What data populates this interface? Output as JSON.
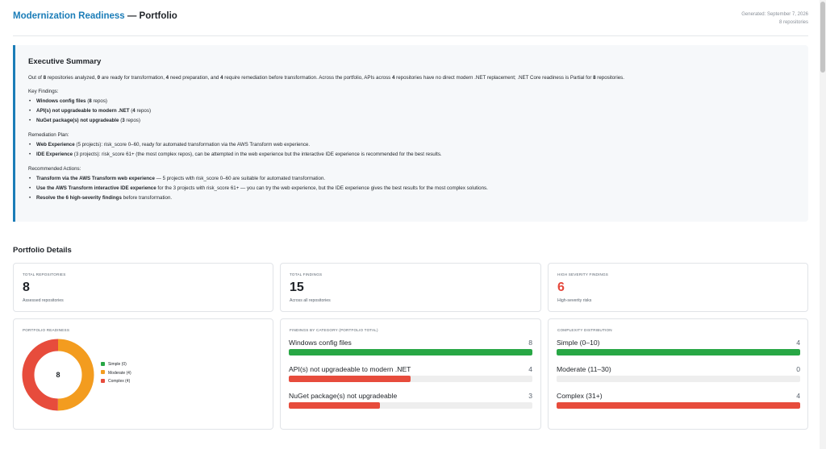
{
  "header": {
    "title_accent": "Modernization Readiness",
    "title_rest": " — Portfolio",
    "generated": "Generated: September 7, 2026",
    "repo_count": "8 repositories"
  },
  "summary": {
    "heading": "Executive Summary",
    "intro": [
      {
        "t": "Out of ",
        "b": false
      },
      {
        "t": "8",
        "b": true
      },
      {
        "t": " repositories analyzed, ",
        "b": false
      },
      {
        "t": "0",
        "b": true
      },
      {
        "t": " are ready for transformation, ",
        "b": false
      },
      {
        "t": "4",
        "b": true
      },
      {
        "t": " need preparation, and ",
        "b": false
      },
      {
        "t": "4",
        "b": true
      },
      {
        "t": " require remediation before transformation. Across the portfolio, APIs across ",
        "b": false
      },
      {
        "t": "4",
        "b": true
      },
      {
        "t": " repositories have no direct modern .NET replacement; .NET Core readiness is Partial for ",
        "b": false
      },
      {
        "t": "8",
        "b": true
      },
      {
        "t": " repositories.",
        "b": false
      }
    ],
    "sections": [
      {
        "title": "Key Findings:",
        "items": [
          [
            {
              "t": "Windows config files",
              "b": true
            },
            {
              "t": " (",
              "b": false
            },
            {
              "t": "8",
              "b": true
            },
            {
              "t": " repos)",
              "b": false
            }
          ],
          [
            {
              "t": "API(s) not upgradeable to modern .NET",
              "b": true
            },
            {
              "t": " (",
              "b": false
            },
            {
              "t": "4",
              "b": true
            },
            {
              "t": " repos)",
              "b": false
            }
          ],
          [
            {
              "t": "NuGet package(s) not upgradeable",
              "b": true
            },
            {
              "t": " (",
              "b": false
            },
            {
              "t": "3",
              "b": true
            },
            {
              "t": " repos)",
              "b": false
            }
          ]
        ]
      },
      {
        "title": "Remediation Plan:",
        "items": [
          [
            {
              "t": "Web Experience",
              "b": true
            },
            {
              "t": " (5 projects): risk_score 0–60, ready for automated transformation via the AWS Transform web experience.",
              "b": false
            }
          ],
          [
            {
              "t": "IDE Experience",
              "b": true
            },
            {
              "t": " (3 projects): risk_score 61+ (the most complex repos), can be attempted in the web experience but the interactive IDE experience is recommended for the best results.",
              "b": false
            }
          ]
        ]
      },
      {
        "title": "Recommended Actions:",
        "items": [
          [
            {
              "t": "Transform via the AWS Transform web experience",
              "b": true
            },
            {
              "t": " — 5 projects with risk_score 0–60 are suitable for automated transformation.",
              "b": false
            }
          ],
          [
            {
              "t": "Use the AWS Transform interactive IDE experience",
              "b": true
            },
            {
              "t": " for the 3 projects with risk_score 61+ — you can try the web experience, but the IDE experience gives the best results for the most complex solutions.",
              "b": false
            }
          ],
          [
            {
              "t": "Resolve the 6 high-severity findings",
              "b": true
            },
            {
              "t": " before transformation.",
              "b": false
            }
          ]
        ]
      }
    ]
  },
  "portfolio": {
    "title": "Portfolio Details",
    "stats": [
      {
        "label": "TOTAL REPOSITORIES",
        "value": "8",
        "sub": "Assessed repositories",
        "color": "#1f2328"
      },
      {
        "label": "TOTAL FINDINGS",
        "value": "15",
        "sub": "Across all repositories",
        "color": "#1f2328"
      },
      {
        "label": "HIGH SEVERITY FINDINGS",
        "value": "6",
        "sub": "High-severity risks",
        "color": "#e5483c"
      }
    ],
    "readiness": {
      "label": "PORTFOLIO READINESS",
      "center": "8",
      "total": 8,
      "segments": [
        {
          "name": "Simple (0)",
          "value": 0,
          "color": "#28a745"
        },
        {
          "name": "Moderate (4)",
          "value": 4,
          "color": "#f39c1f"
        },
        {
          "name": "Complex (4)",
          "value": 4,
          "color": "#e74c3c"
        }
      ]
    },
    "findings": {
      "label": "FINDINGS BY CATEGORY (PORTFOLIO TOTAL)",
      "max": 8,
      "rows": [
        {
          "name": "Windows config files",
          "value": 8,
          "display": "8",
          "color": "#28a745"
        },
        {
          "name": "API(s) not upgradeable to modern .NET",
          "value": 4,
          "display": "4",
          "color": "#e74c3c"
        },
        {
          "name": "NuGet package(s) not upgradeable",
          "value": 3,
          "display": "3",
          "color": "#e74c3c"
        }
      ]
    },
    "complexity": {
      "label": "COMPLEXITY DISTRIBUTION",
      "max": 4,
      "rows": [
        {
          "name": "Simple (0–10)",
          "value": 4,
          "display": "4",
          "color": "#28a745"
        },
        {
          "name": "Moderate (11–30)",
          "value": 0,
          "display": "0",
          "color": "#f39c1f"
        },
        {
          "name": "Complex (31+)",
          "value": 4,
          "display": "4",
          "color": "#e74c3c"
        }
      ]
    }
  }
}
